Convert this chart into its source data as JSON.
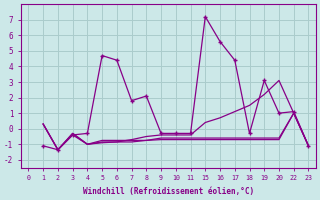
{
  "xlabel": "Windchill (Refroidissement éolien,°C)",
  "bg_color": "#cce8e8",
  "grid_color": "#aacccc",
  "line_color": "#880088",
  "ylim": [
    -2.5,
    8.0
  ],
  "yticks": [
    -2,
    -1,
    0,
    1,
    2,
    3,
    4,
    5,
    6,
    7
  ],
  "xtick_labels": [
    "0",
    "1",
    "2",
    "3",
    "4",
    "5",
    "6",
    "7",
    "8",
    "9",
    "10",
    "11",
    "15",
    "16",
    "17",
    "18",
    "19",
    "20",
    "22",
    "23"
  ],
  "lines": [
    {
      "xi": [
        1,
        2,
        3,
        4,
        5,
        6,
        7,
        8,
        9,
        10,
        11,
        12,
        13,
        14,
        15,
        16,
        17,
        18,
        19
      ],
      "y": [
        -1.1,
        -1.35,
        -0.4,
        -0.3,
        4.7,
        4.4,
        1.8,
        2.1,
        -0.3,
        -0.3,
        -0.3,
        7.2,
        5.6,
        4.4,
        -0.3,
        3.1,
        1.0,
        1.1,
        -1.1
      ],
      "marker": "+"
    },
    {
      "xi": [
        1,
        2,
        3,
        4,
        5,
        6,
        7,
        8,
        9,
        10,
        11,
        12,
        13,
        14,
        15,
        16,
        17,
        18,
        19
      ],
      "y": [
        0.3,
        -1.35,
        -0.3,
        -1.0,
        -0.85,
        -0.85,
        -0.7,
        -0.5,
        -0.4,
        -0.4,
        -0.4,
        0.4,
        0.7,
        1.1,
        1.5,
        2.2,
        3.1,
        1.0,
        -1.1
      ],
      "marker": null
    },
    {
      "xi": [
        1,
        2,
        3,
        4,
        5,
        6,
        7,
        8,
        9,
        10,
        11,
        12,
        13,
        14,
        15,
        16,
        17,
        18,
        19
      ],
      "y": [
        0.3,
        -1.35,
        -0.4,
        -1.0,
        -0.9,
        -0.85,
        -0.85,
        -0.75,
        -0.6,
        -0.6,
        -0.6,
        -0.6,
        -0.6,
        -0.6,
        -0.6,
        -0.6,
        -0.6,
        1.0,
        -1.1
      ],
      "marker": null
    },
    {
      "xi": [
        1,
        2,
        3,
        4,
        5,
        6,
        7,
        8,
        9,
        10,
        11,
        12,
        13,
        14,
        15,
        16,
        17,
        18,
        19
      ],
      "y": [
        0.3,
        -1.35,
        -0.3,
        -1.0,
        -0.75,
        -0.75,
        -0.75,
        -0.75,
        -0.7,
        -0.7,
        -0.7,
        -0.7,
        -0.7,
        -0.7,
        -0.7,
        -0.7,
        -0.7,
        1.0,
        -1.1
      ],
      "marker": null
    }
  ]
}
